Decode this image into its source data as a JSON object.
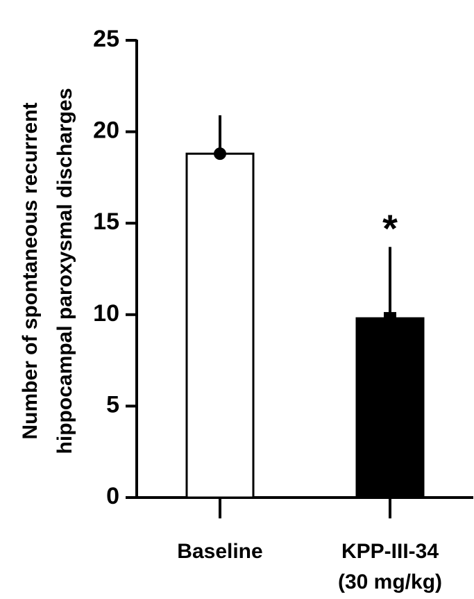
{
  "chart_data": {
    "type": "bar",
    "ylabel": [
      "Number of spontaneous recurrent",
      "hippocampal paroxysmal discharges"
    ],
    "categories": [
      "Baseline",
      "KPP-III-34\n(30 mg/kg)"
    ],
    "values": [
      18.8,
      9.8
    ],
    "errors": [
      2.1,
      3.9
    ],
    "colors": [
      "#ffffff",
      "#000000"
    ],
    "markers": [
      "circle",
      "square"
    ],
    "annotations": [
      "",
      "*"
    ],
    "ylim": [
      0,
      25
    ],
    "yticks": [
      0,
      5,
      10,
      15,
      20,
      25
    ],
    "grid": false
  }
}
